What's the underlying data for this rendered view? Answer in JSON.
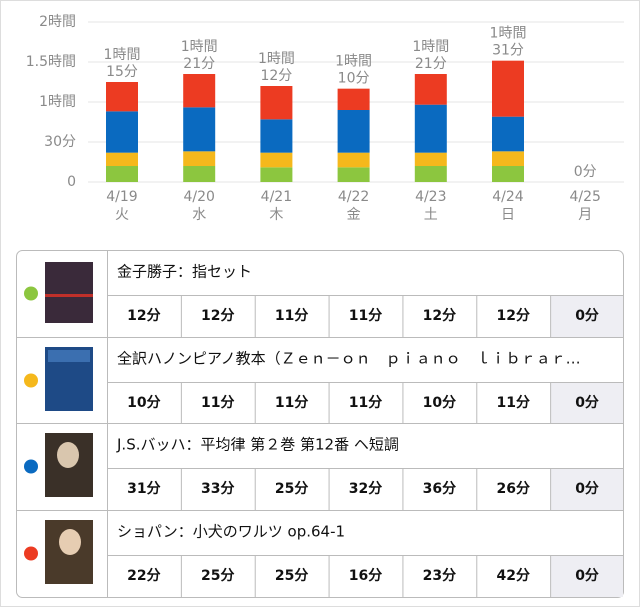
{
  "chart_data": {
    "type": "stacked-bar",
    "categories": [
      "4/19",
      "4/20",
      "4/21",
      "4/22",
      "4/23",
      "4/24",
      "4/25"
    ],
    "weekdays": [
      "火",
      "水",
      "木",
      "金",
      "土",
      "日",
      "月"
    ],
    "ylim": [
      0,
      120
    ],
    "yticks": [
      0,
      {
        "value": 30,
        "label": "30分"
      },
      {
        "value": 60,
        "label": "1時間"
      },
      {
        "value": 90,
        "label": "1.5時間"
      },
      {
        "value": 120,
        "label": "2時間"
      }
    ],
    "grid": true,
    "series": [
      {
        "name": "金子勝子：指セット",
        "color": "#8cc63f",
        "values": [
          12,
          12,
          11,
          11,
          12,
          12,
          0
        ],
        "value_labels": [
          "12分",
          "12分",
          "11分",
          "11分",
          "12分",
          "12分",
          "0分"
        ]
      },
      {
        "name": "全訳ハノンピアノ教本（Ｚｅｎ－ｏｎ　ｐｉａｎｏ　ｌｉｂｒａｒ…",
        "color": "#f5b81c",
        "values": [
          10,
          11,
          11,
          11,
          10,
          11,
          0
        ],
        "value_labels": [
          "10分",
          "11分",
          "11分",
          "11分",
          "10分",
          "11分",
          "0分"
        ]
      },
      {
        "name": "J.S.バッハ：平均律 第２巻 第12番 ヘ短調",
        "color": "#0a6ac0",
        "values": [
          31,
          33,
          25,
          32,
          36,
          26,
          0
        ],
        "value_labels": [
          "31分",
          "33分",
          "25分",
          "32分",
          "36分",
          "26分",
          "0分"
        ]
      },
      {
        "name": "ショパン：小犬のワルツ op.64-1",
        "color": "#ec3b22",
        "values": [
          22,
          25,
          25,
          16,
          23,
          42,
          0
        ],
        "value_labels": [
          "22分",
          "25分",
          "25分",
          "16分",
          "23分",
          "42分",
          "0分"
        ]
      }
    ],
    "totals": [
      75,
      81,
      72,
      70,
      81,
      91,
      0
    ],
    "total_labels": [
      [
        "1時間",
        "15分"
      ],
      [
        "1時間",
        "21分"
      ],
      [
        "1時間",
        "12分"
      ],
      [
        "1時間",
        "10分"
      ],
      [
        "1時間",
        "21分"
      ],
      [
        "1時間",
        "31分"
      ],
      [
        "0分"
      ]
    ]
  }
}
